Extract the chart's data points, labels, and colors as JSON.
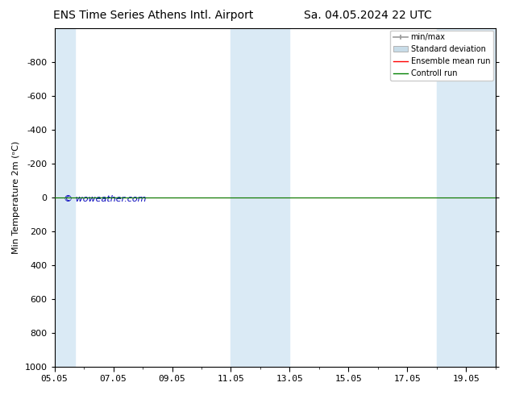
{
  "title_left": "ENS Time Series Athens Intl. Airport",
  "title_right": "Sa. 04.05.2024 22 UTC",
  "ylabel": "Min Temperature 2m (ᵒC)",
  "xlim": [
    0,
    15
  ],
  "ylim_bottom": 1000,
  "ylim_top": -1000,
  "yticks": [
    -800,
    -600,
    -400,
    -200,
    0,
    200,
    400,
    600,
    800,
    1000
  ],
  "xtick_positions": [
    0,
    2,
    4,
    6,
    8,
    10,
    12,
    14
  ],
  "xtick_labels": [
    "05.05",
    "07.05",
    "09.05",
    "11.05",
    "13.05",
    "15.05",
    "17.05",
    "19.05"
  ],
  "shaded_bands": [
    {
      "x_start": 0.0,
      "x_end": 0.7
    },
    {
      "x_start": 6.0,
      "x_end": 8.0
    },
    {
      "x_start": 13.0,
      "x_end": 15.0
    }
  ],
  "shade_color": "#daeaf5",
  "line_y": 0,
  "ensemble_mean_color": "#ff0000",
  "control_run_color": "#008000",
  "background_color": "#ffffff",
  "watermark": "© woweather.com",
  "watermark_color": "#0000bb",
  "watermark_fontsize": 8,
  "legend_items": [
    "min/max",
    "Standard deviation",
    "Ensemble mean run",
    "Controll run"
  ],
  "legend_colors": [
    "#999999",
    "#c8dce8",
    "#ff0000",
    "#008000"
  ],
  "title_fontsize": 10,
  "axis_fontsize": 8,
  "tick_fontsize": 8
}
